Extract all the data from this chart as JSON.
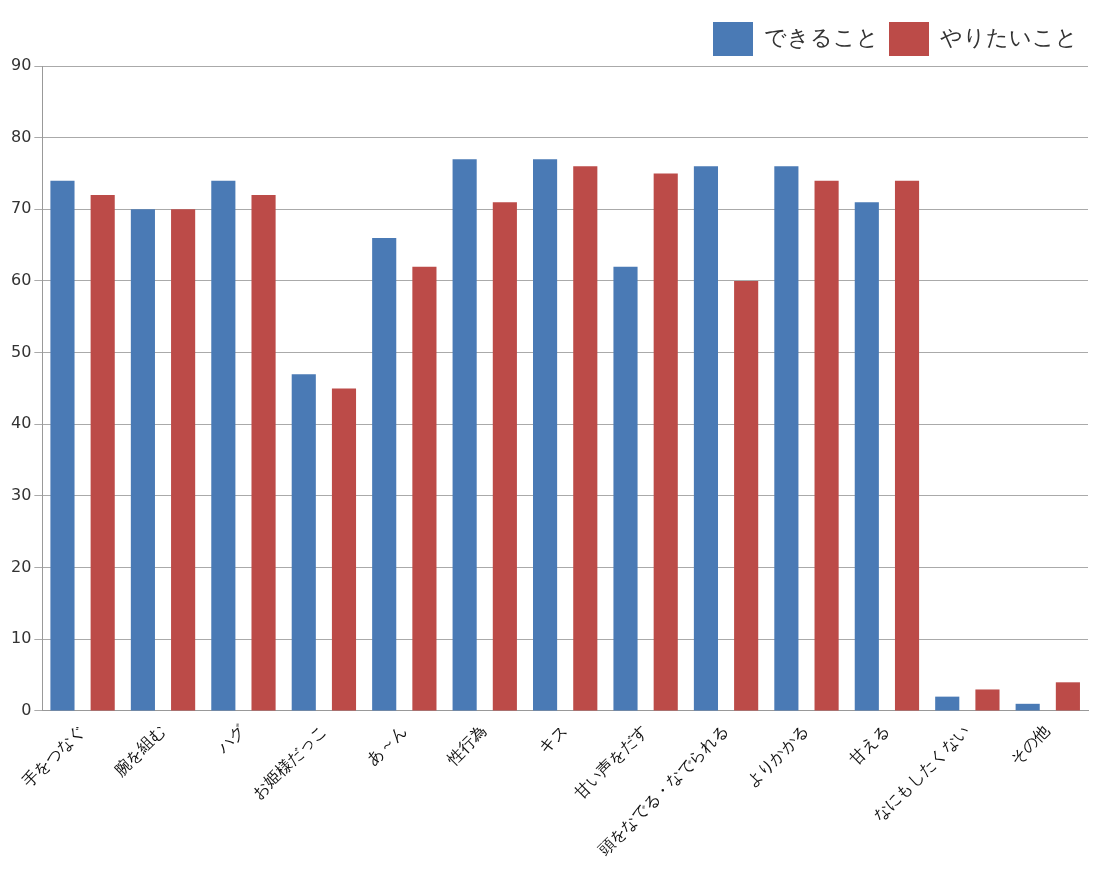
{
  "chart_data": {
    "type": "bar",
    "categories": [
      "手をつなぐ",
      "腕を組む",
      "ハグ",
      "お姫様だっこ",
      "あ～ん",
      "性行為",
      "キス",
      "甘い声をだす",
      "頭をなでる・なでられる",
      "よりかかる",
      "甘える",
      "なにもしたくない",
      "その他"
    ],
    "series": [
      {
        "name": "できること",
        "color": "#4a7ab5",
        "values": [
          74,
          70,
          74,
          47,
          66,
          77,
          77,
          62,
          76,
          76,
          71,
          2,
          1
        ]
      },
      {
        "name": "やりたいこと",
        "color": "#bc4b48",
        "values": [
          72,
          70,
          72,
          45,
          62,
          71,
          76,
          75,
          60,
          74,
          74,
          3,
          4
        ]
      }
    ],
    "ylim": [
      0,
      90
    ],
    "yticks": [
      0,
      10,
      20,
      30,
      40,
      50,
      60,
      70,
      80,
      90
    ],
    "grid": "y",
    "legend": "top right"
  }
}
